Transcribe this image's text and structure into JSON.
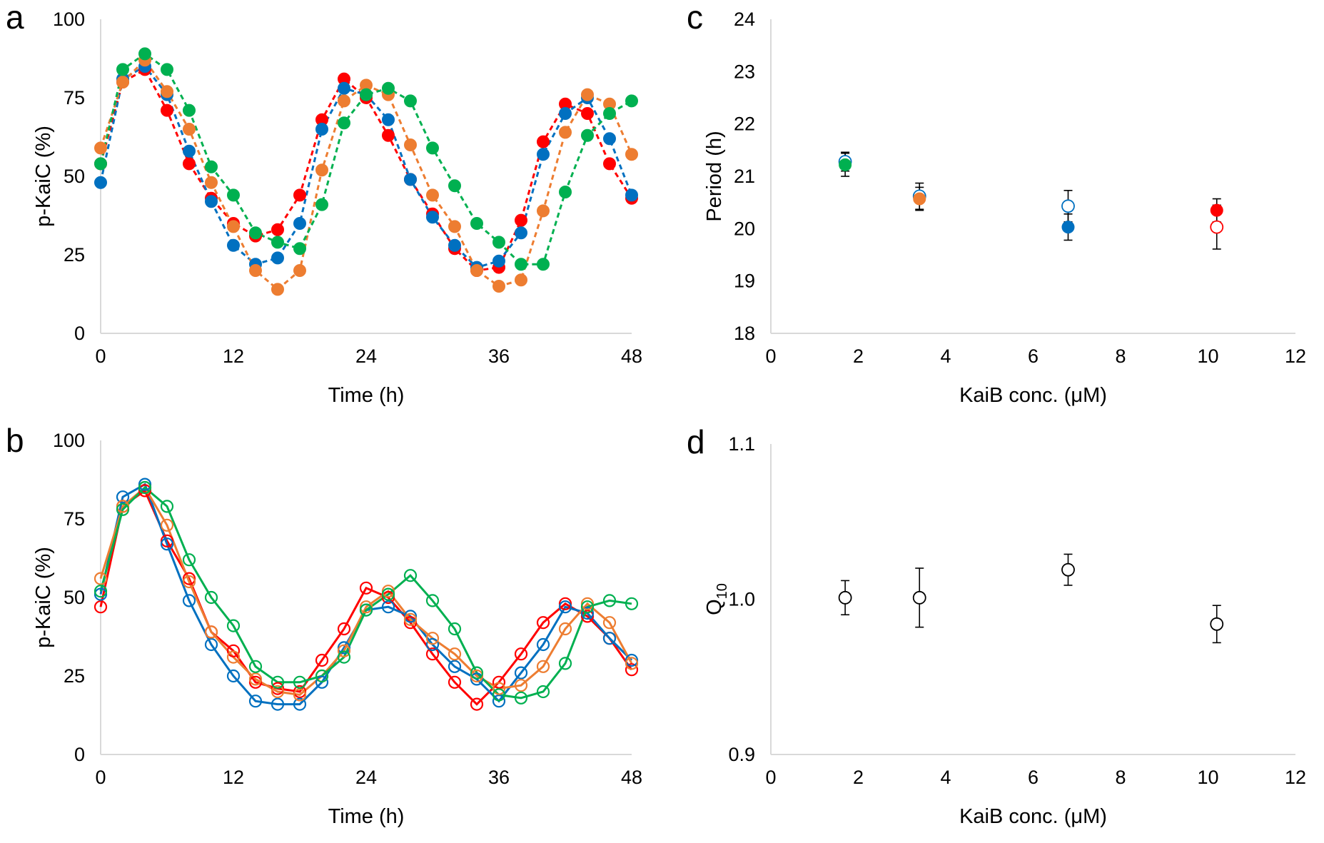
{
  "figure": {
    "colors": {
      "red": "#ff0000",
      "blue": "#0070c0",
      "orange": "#ed7d31",
      "green": "#00b050",
      "black": "#000000",
      "axis": "#d9d9d9"
    }
  },
  "chart_data": [
    {
      "id": "a",
      "panel_label": "a",
      "type": "line",
      "line_style": "dashed",
      "marker": "filled-circle",
      "xlabel": "Time (h)",
      "ylabel": "p-KaiC (%)",
      "xlim": [
        0,
        48
      ],
      "ylim": [
        0,
        100
      ],
      "xticks": [
        0,
        12,
        24,
        36,
        48
      ],
      "yticks": [
        0,
        25,
        50,
        75,
        100
      ],
      "x": [
        0,
        2,
        4,
        6,
        8,
        10,
        12,
        14,
        16,
        18,
        20,
        22,
        24,
        26,
        28,
        30,
        32,
        34,
        36,
        38,
        40,
        42,
        44,
        46,
        48
      ],
      "series": [
        {
          "name": "red",
          "color": "#ff0000",
          "values": [
            54,
            80,
            84,
            71,
            54,
            43,
            35,
            31,
            33,
            44,
            68,
            81,
            75,
            63,
            49,
            38,
            27,
            20,
            21,
            36,
            61,
            73,
            70,
            54,
            43
          ]
        },
        {
          "name": "blue",
          "color": "#0070c0",
          "values": [
            48,
            81,
            85,
            76,
            58,
            42,
            28,
            22,
            24,
            35,
            65,
            78,
            76,
            68,
            49,
            37,
            28,
            21,
            23,
            32,
            57,
            70,
            75,
            62,
            44
          ]
        },
        {
          "name": "orange",
          "color": "#ed7d31",
          "values": [
            59,
            80,
            87,
            77,
            65,
            48,
            34,
            20,
            14,
            20,
            52,
            74,
            79,
            76,
            60,
            44,
            34,
            20,
            15,
            17,
            39,
            64,
            76,
            73,
            57
          ]
        },
        {
          "name": "green",
          "color": "#00b050",
          "values": [
            54,
            84,
            89,
            84,
            71,
            53,
            44,
            32,
            29,
            27,
            41,
            67,
            76,
            78,
            74,
            59,
            47,
            35,
            29,
            22,
            22,
            45,
            63,
            70,
            74
          ]
        }
      ]
    },
    {
      "id": "b",
      "panel_label": "b",
      "type": "line",
      "line_style": "solid",
      "marker": "open-circle",
      "xlabel": "Time (h)",
      "ylabel": "p-KaiC (%)",
      "xlim": [
        0,
        48
      ],
      "ylim": [
        0,
        100
      ],
      "xticks": [
        0,
        12,
        24,
        36,
        48
      ],
      "yticks": [
        0,
        25,
        50,
        75,
        100
      ],
      "x": [
        0,
        2,
        4,
        6,
        8,
        10,
        12,
        14,
        16,
        18,
        20,
        22,
        24,
        26,
        28,
        30,
        32,
        34,
        36,
        38,
        40,
        42,
        44,
        46,
        48
      ],
      "series": [
        {
          "name": "red",
          "color": "#ff0000",
          "values": [
            47,
            79,
            84,
            68,
            56,
            39,
            33,
            23,
            21,
            20,
            30,
            40,
            53,
            50,
            42,
            32,
            23,
            16,
            23,
            32,
            42,
            48,
            44,
            37,
            27
          ]
        },
        {
          "name": "blue",
          "color": "#0070c0",
          "values": [
            51,
            82,
            86,
            67,
            49,
            35,
            25,
            17,
            16,
            16,
            23,
            34,
            46,
            47,
            44,
            35,
            28,
            24,
            17,
            26,
            35,
            47,
            45,
            37,
            30
          ]
        },
        {
          "name": "orange",
          "color": "#ed7d31",
          "values": [
            56,
            79,
            85,
            73,
            55,
            39,
            31,
            24,
            20,
            19,
            25,
            33,
            47,
            52,
            43,
            37,
            32,
            25,
            21,
            22,
            28,
            40,
            48,
            42,
            29
          ]
        },
        {
          "name": "green",
          "color": "#00b050",
          "values": [
            52,
            78,
            85,
            79,
            62,
            50,
            41,
            28,
            23,
            23,
            25,
            31,
            46,
            51,
            57,
            49,
            40,
            26,
            19,
            18,
            20,
            29,
            47,
            49,
            48
          ]
        }
      ]
    },
    {
      "id": "c",
      "panel_label": "c",
      "type": "scatter",
      "xlabel": "KaiB conc. (μM)",
      "ylabel": "Period (h)",
      "xlim": [
        0,
        12
      ],
      "ylim": [
        18,
        24
      ],
      "xticks": [
        0,
        2,
        4,
        6,
        8,
        10,
        12
      ],
      "yticks": [
        18,
        19,
        20,
        21,
        22,
        23,
        24
      ],
      "points": [
        {
          "x": 1.7,
          "y": 21.28,
          "err": 0.18,
          "filled": false,
          "color": "#0070c0"
        },
        {
          "x": 1.7,
          "y": 21.22,
          "err": 0.22,
          "filled": true,
          "color": "#00b050"
        },
        {
          "x": 3.4,
          "y": 20.62,
          "err": 0.25,
          "filled": false,
          "color": "#0070c0"
        },
        {
          "x": 3.4,
          "y": 20.57,
          "err": 0.22,
          "filled": true,
          "color": "#ed7d31"
        },
        {
          "x": 6.8,
          "y": 20.43,
          "err": 0.3,
          "filled": false,
          "color": "#0070c0"
        },
        {
          "x": 6.8,
          "y": 20.03,
          "err": 0.25,
          "filled": true,
          "color": "#0070c0"
        },
        {
          "x": 10.2,
          "y": 20.35,
          "err": 0.22,
          "filled": true,
          "color": "#ff0000"
        },
        {
          "x": 10.2,
          "y": 20.03,
          "err": 0.42,
          "filled": false,
          "color": "#ff0000"
        }
      ]
    },
    {
      "id": "d",
      "panel_label": "d",
      "type": "scatter",
      "xlabel": "KaiB conc. (μM)",
      "ylabel_main": "Q",
      "ylabel_sub": "10",
      "xlim": [
        0,
        12
      ],
      "ylim": [
        0.9,
        1.1
      ],
      "xticks": [
        0,
        2,
        4,
        6,
        8,
        10,
        12
      ],
      "yticks": [
        0.9,
        1.0,
        1.1
      ],
      "ytick_labels": [
        "0.9",
        "1.0",
        "1.1"
      ],
      "points": [
        {
          "x": 1.7,
          "y": 1.001,
          "err": 0.011,
          "filled": false,
          "color": "#000000"
        },
        {
          "x": 3.4,
          "y": 1.001,
          "err": 0.019,
          "filled": false,
          "color": "#000000"
        },
        {
          "x": 6.8,
          "y": 1.019,
          "err": 0.01,
          "filled": false,
          "color": "#000000"
        },
        {
          "x": 10.2,
          "y": 0.984,
          "err": 0.012,
          "filled": false,
          "color": "#000000"
        }
      ]
    }
  ]
}
